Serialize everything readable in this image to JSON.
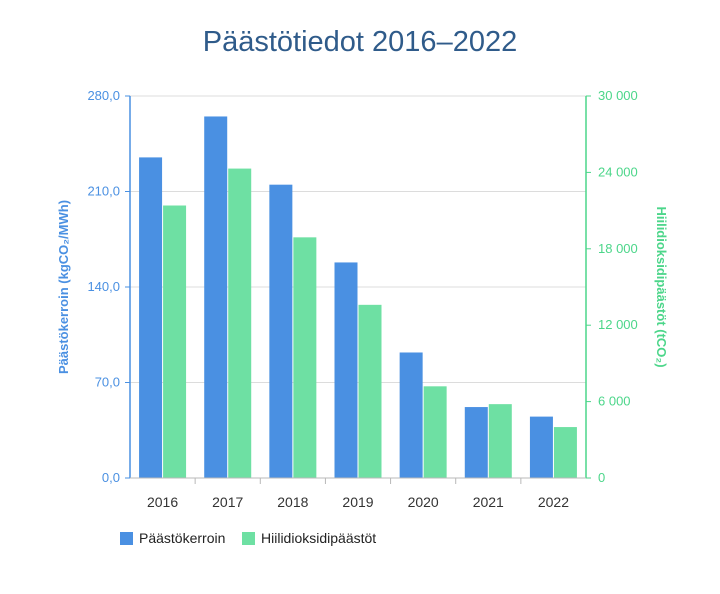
{
  "chart_data": {
    "type": "bar",
    "title": "Päästötiedot 2016–2022",
    "categories": [
      "2016",
      "2017",
      "2018",
      "2019",
      "2020",
      "2021",
      "2022"
    ],
    "series": [
      {
        "name": "Päästökerroin",
        "axis": "left",
        "color": "#4a90e2",
        "values": [
          235,
          265,
          215,
          158,
          92,
          52,
          45
        ]
      },
      {
        "name": "Hiilidioksidipäästöt",
        "axis": "right",
        "color": "#6ee0a3",
        "values": [
          21400,
          24300,
          18900,
          13600,
          7200,
          5800,
          4000
        ]
      }
    ],
    "ylabel_left": "Päästökerroin (kgCO₂/MWh)",
    "ylabel_right": "Hiilidioksidipäästöt (tCO₂)",
    "ylim_left": [
      0,
      280
    ],
    "ylim_right": [
      0,
      30000
    ],
    "yticks_left": [
      "0,0",
      "70,0",
      "140,0",
      "210,0",
      "280,0"
    ],
    "yticks_right": [
      "0",
      "6 000",
      "12 000",
      "18 000",
      "24 000",
      "30 000"
    ],
    "grid": true,
    "legend_position": "bottom-left"
  }
}
